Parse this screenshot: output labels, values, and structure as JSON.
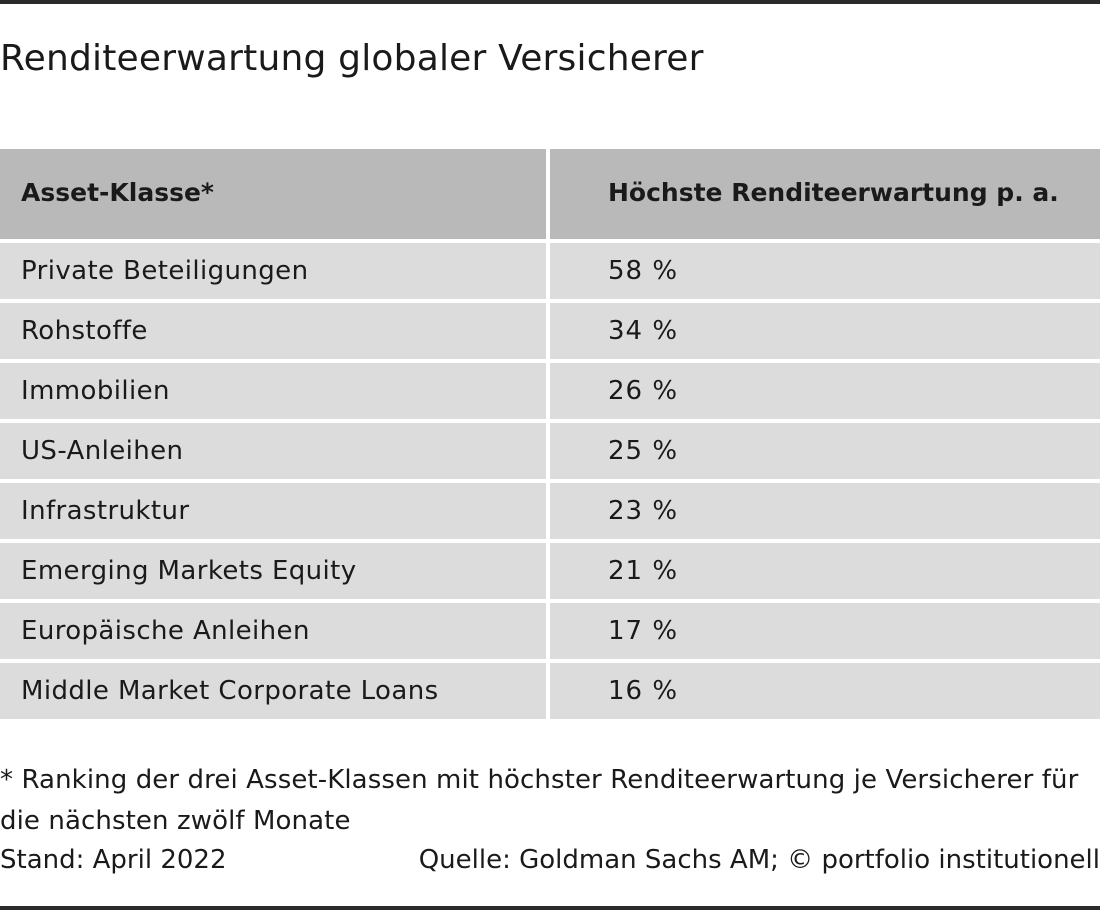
{
  "title": "Renditeerwartung globaler Versicherer",
  "table": {
    "headers": [
      "Asset-Klasse*",
      "Höchste Renditeerwartung p. a."
    ],
    "rows": [
      [
        "Private Beteiligungen",
        "58 %"
      ],
      [
        "Rohstoffe",
        "34 %"
      ],
      [
        "Immobilien",
        "26 %"
      ],
      [
        "US-Anleihen",
        "25 %"
      ],
      [
        "Infrastruktur",
        "23 %"
      ],
      [
        "Emerging Markets Equity",
        "21 %"
      ],
      [
        "Europäische Anleihen",
        "17 %"
      ],
      [
        "Middle Market Corporate Loans",
        "16 %"
      ]
    ]
  },
  "footnote": {
    "line1": "* Ranking der drei Asset-Klassen mit höchster Renditeerwartung je Versicherer für",
    "line2": "die nächsten zwölf Monate"
  },
  "stand": "Stand: April 2022",
  "source": "Quelle: Goldman Sachs AM; © portfolio institutionell",
  "chart_data": {
    "type": "table",
    "title": "Renditeerwartung globaler Versicherer",
    "columns": [
      "Asset-Klasse*",
      "Höchste Renditeerwartung p. a."
    ],
    "categories": [
      "Private Beteiligungen",
      "Rohstoffe",
      "Immobilien",
      "US-Anleihen",
      "Infrastruktur",
      "Emerging Markets Equity",
      "Europäische Anleihen",
      "Middle Market Corporate Loans"
    ],
    "values": [
      58,
      34,
      26,
      25,
      23,
      21,
      17,
      16
    ],
    "unit": "%"
  },
  "colors": {
    "header_bg": "#b9b9b9",
    "row_bg": "#dcdcdc",
    "rule": "#2a2a2a",
    "text": "#1a1a1a"
  }
}
